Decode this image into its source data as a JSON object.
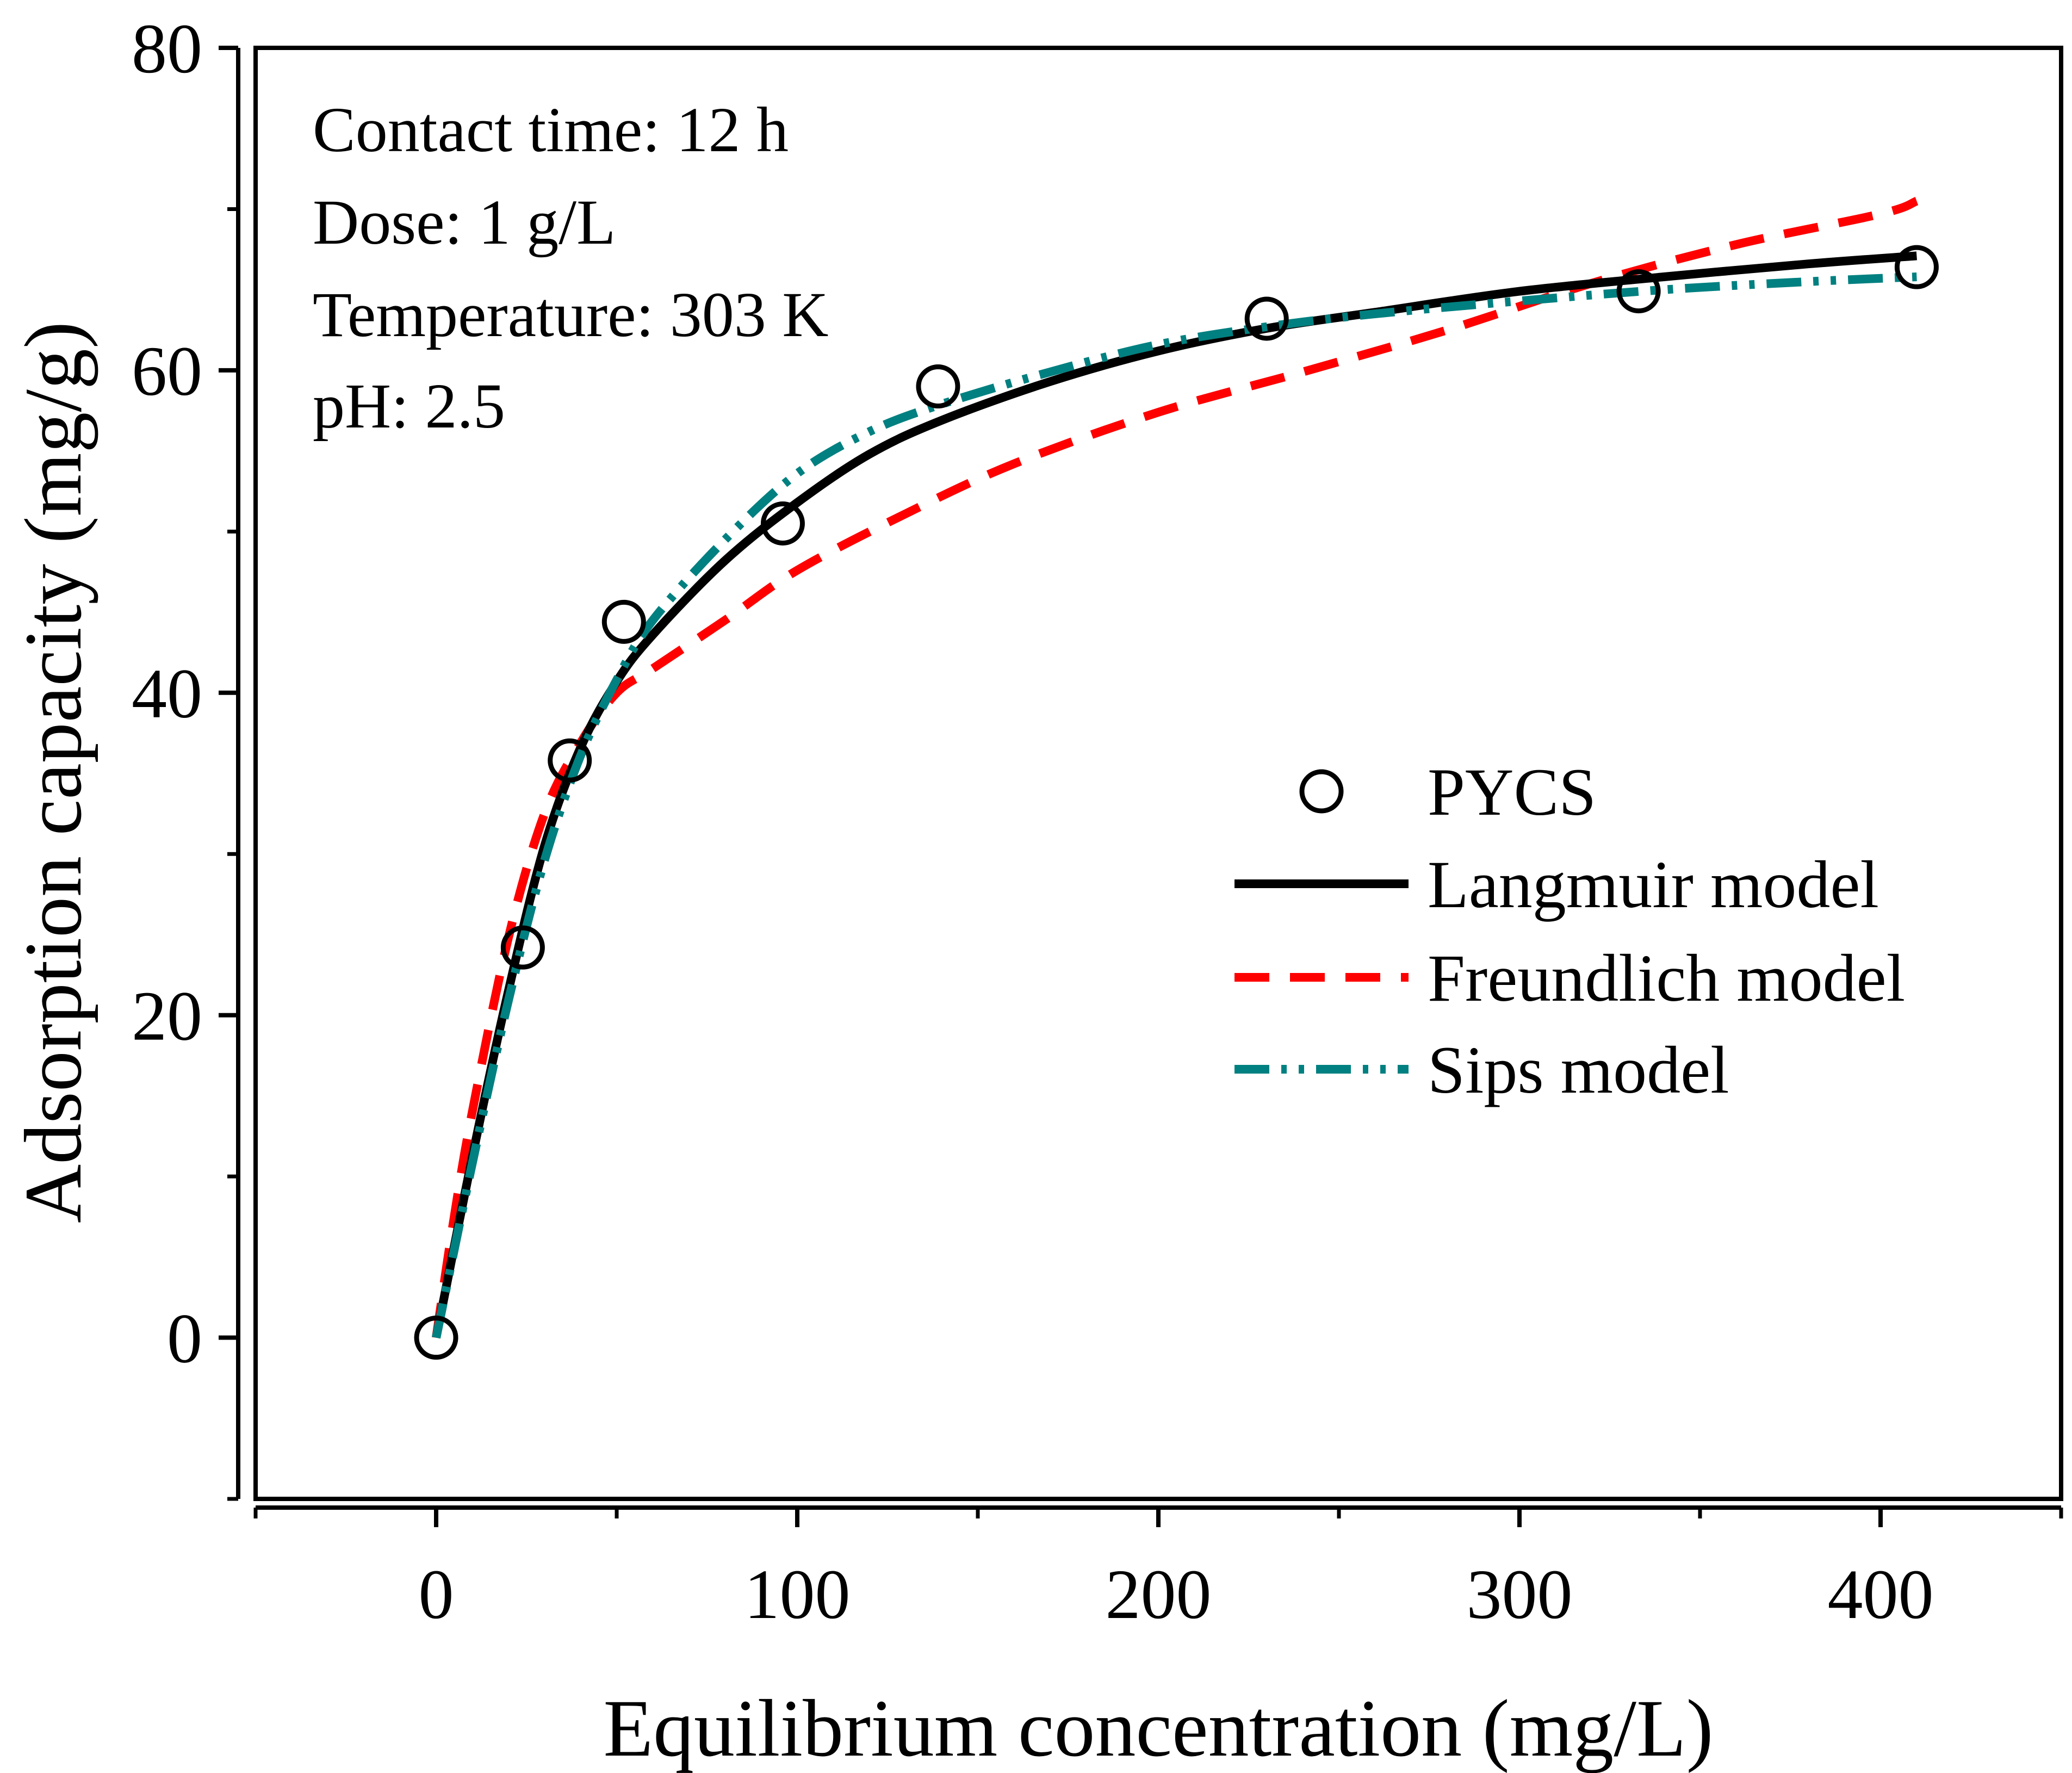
{
  "chart_data": {
    "type": "scatter",
    "title": "",
    "xlabel": "Equilibrium concentration (mg/L)",
    "ylabel": "Adsorption capacity (mg/g)",
    "xlim": [
      -50,
      450
    ],
    "ylim": [
      -10,
      80
    ],
    "xticks": [
      0,
      100,
      200,
      300,
      400
    ],
    "yticks": [
      0,
      20,
      40,
      60,
      80
    ],
    "annotations": [
      "Contact time: 12 h",
      "Dose: 1 g/L",
      "Temperature: 303 K",
      "pH: 2.5"
    ],
    "legend_position": "right",
    "series": [
      {
        "name": "PYCS",
        "kind": "points",
        "color": "#000000",
        "x": [
          0,
          24,
          37,
          52,
          96,
          139,
          230,
          333,
          410
        ],
        "y": [
          0,
          24.2,
          35.8,
          44.4,
          50.5,
          59.0,
          63.2,
          64.9,
          66.4
        ]
      },
      {
        "name": "Langmuir model",
        "kind": "line",
        "color": "#000000",
        "x": [
          0,
          10,
          20,
          30,
          40,
          50,
          60,
          80,
          100,
          120,
          140,
          170,
          200,
          230,
          260,
          300,
          340,
          380,
          410
        ],
        "y": [
          0,
          11.2,
          21.5,
          30.5,
          36.6,
          40.7,
          43.6,
          48.2,
          51.8,
          54.8,
          56.9,
          59.3,
          61.2,
          62.6,
          63.6,
          64.9,
          65.8,
          66.6,
          67.1
        ]
      },
      {
        "name": "Freundlich model",
        "kind": "line",
        "color": "#ff0000",
        "x": [
          0,
          5,
          10,
          20,
          30,
          40,
          50,
          60,
          80,
          100,
          130,
          160,
          200,
          240,
          280,
          320,
          360,
          400,
          410
        ],
        "y": [
          0,
          7.5,
          14.0,
          24.8,
          32.5,
          36.9,
          40.0,
          41.5,
          44.5,
          47.6,
          51.1,
          54.2,
          57.4,
          59.9,
          62.5,
          65.4,
          67.8,
          69.7,
          70.5
        ]
      },
      {
        "name": "Sips model",
        "kind": "line",
        "color": "#008080",
        "x": [
          0,
          10,
          20,
          30,
          40,
          50,
          60,
          80,
          100,
          120,
          140,
          170,
          200,
          230,
          260,
          300,
          340,
          380,
          410
        ],
        "y": [
          0,
          10.8,
          20.9,
          29.6,
          36.1,
          40.8,
          44.5,
          49.5,
          53.6,
          56.2,
          57.9,
          59.9,
          61.6,
          62.7,
          63.5,
          64.3,
          65.0,
          65.5,
          65.8
        ]
      }
    ]
  }
}
